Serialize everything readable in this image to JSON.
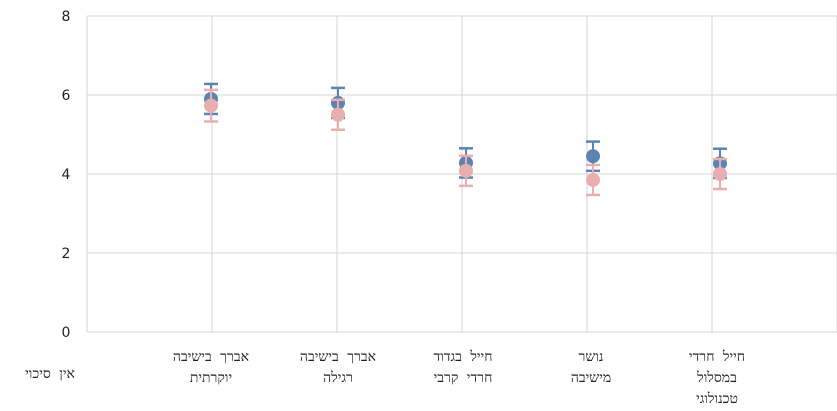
{
  "chart_data": {
    "type": "scatter",
    "title": "",
    "xlabel": "",
    "ylabel": "",
    "ylim": [
      0,
      8
    ],
    "yticks": [
      0,
      2,
      4,
      6,
      8
    ],
    "grid": true,
    "legend": "none",
    "categories": [
      [
        "אין סיכוי"
      ],
      [
        "אברך בישיבה",
        "יוקרתית"
      ],
      [
        "אברך בישיבה",
        "רגילה"
      ],
      [
        "חייל בגדוד",
        "חרדי קרבי"
      ],
      [
        "נושר",
        "מישיבה"
      ],
      [
        "חייל חרדי",
        "במסלול",
        "טכנולוגי"
      ]
    ],
    "series": [
      {
        "color": "#5b84b1",
        "values": [
          null,
          5.9,
          5.8,
          4.28,
          4.45,
          4.27
        ],
        "error": [
          null,
          0.38,
          0.38,
          0.37,
          0.37,
          0.37
        ]
      },
      {
        "color": "#e8aeb0",
        "values": [
          null,
          5.73,
          5.5,
          4.08,
          3.85,
          4.0
        ],
        "error": [
          null,
          0.4,
          0.38,
          0.38,
          0.38,
          0.38
        ]
      }
    ]
  }
}
